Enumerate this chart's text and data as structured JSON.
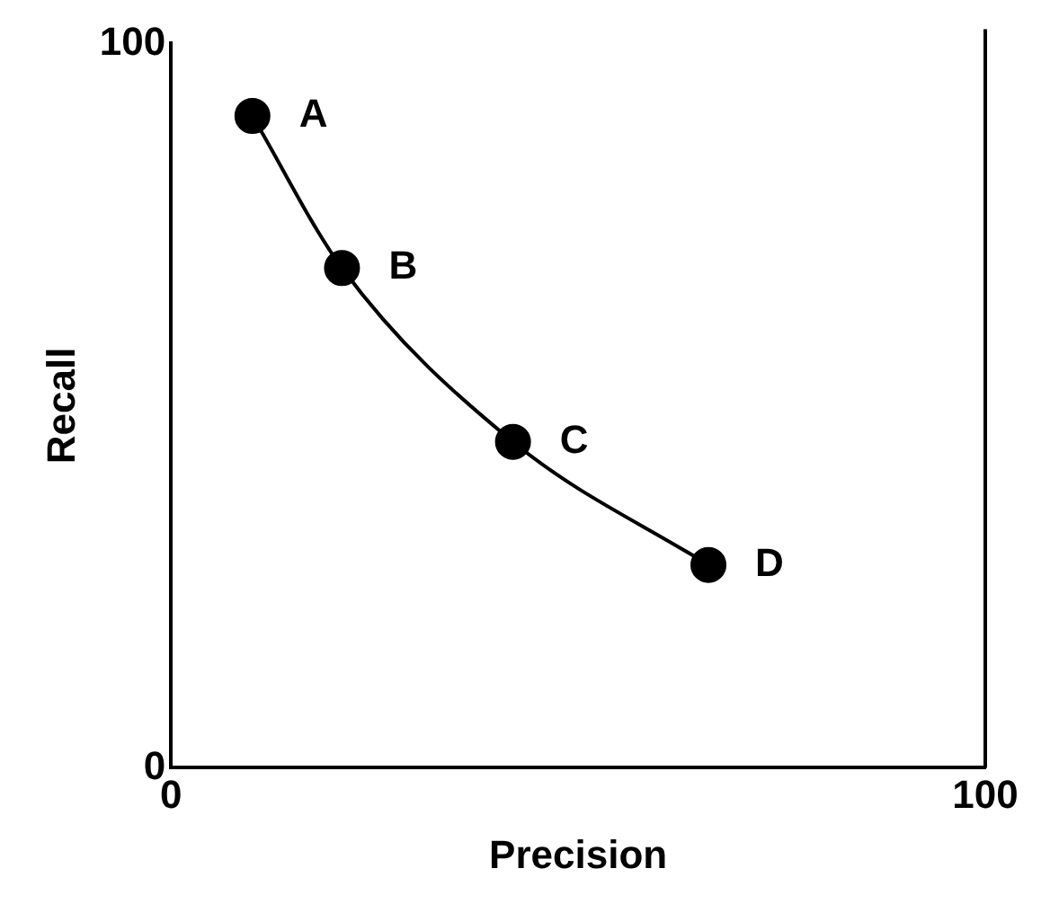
{
  "chart_data": {
    "type": "line",
    "xlabel": "Precision",
    "ylabel": "Recall",
    "x": [
      10,
      21,
      42,
      66
    ],
    "series": [
      {
        "color": "#000000",
        "values": [
          90,
          69,
          45,
          28
        ]
      }
    ],
    "xlim": [
      0,
      100
    ],
    "xticks": [
      0,
      100
    ],
    "ylim": [
      0,
      100
    ],
    "yticks": [
      0,
      100
    ],
    "marker": "circle",
    "line_style": "solid",
    "grid": false,
    "legend": false,
    "annotations": [
      {
        "text": "A",
        "x": 10,
        "y": 90
      },
      {
        "text": "B",
        "x": 21,
        "y": 69
      },
      {
        "text": "C",
        "x": 42,
        "y": 45
      },
      {
        "text": "D",
        "x": 66,
        "y": 28
      }
    ]
  }
}
